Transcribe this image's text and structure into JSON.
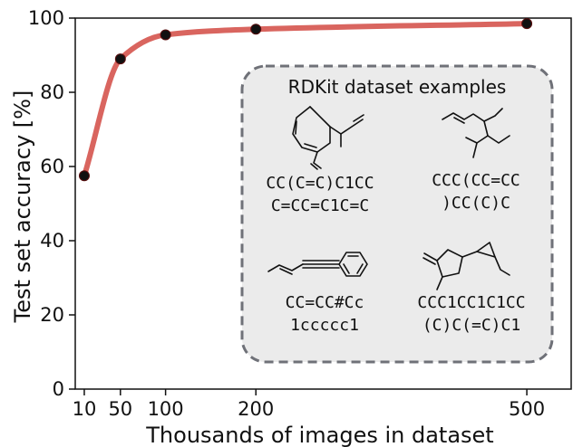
{
  "chart_data": {
    "type": "line",
    "title": "",
    "xlabel": "Thousands of images in dataset",
    "ylabel": "Test set accuracy [%]",
    "x": [
      10,
      50,
      100,
      200,
      500
    ],
    "xticks": [
      "10",
      "50",
      "100",
      "200",
      "500"
    ],
    "xlim": [
      0,
      520
    ],
    "ylim": [
      0,
      100
    ],
    "yticks": [
      "0",
      "20",
      "40",
      "60",
      "80",
      "100"
    ],
    "series": [
      {
        "values": [
          57.5,
          89,
          95.5,
          97,
          98.5
        ],
        "color": "#d9655f",
        "marker_color": "#111111"
      }
    ],
    "grid": false,
    "annotation": {
      "title": "RDKit dataset examples",
      "examples": [
        {
          "line1": "CC(C=C)C1CC",
          "line2": "C=CC=C1C=C"
        },
        {
          "line1": "CCC(CC=CC",
          "line2": ")CC(C)C"
        },
        {
          "line1": "CC=CC#Cc",
          "line2": "1ccccc1"
        },
        {
          "line1": "CCC1CC1C1CC",
          "line2": "(C)C(=C)C1"
        }
      ]
    }
  }
}
